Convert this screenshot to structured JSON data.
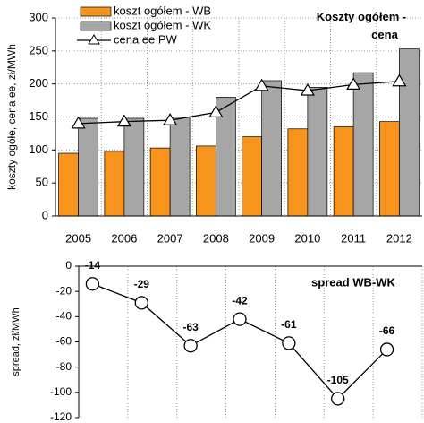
{
  "chart_data": [
    {
      "type": "bar",
      "title": "Koszty ogółem - cena",
      "y_label": "koszty ogółe, cena ee, zł/MWh",
      "categories": [
        "2005",
        "2006",
        "2007",
        "2008",
        "2009",
        "2010",
        "2011",
        "2012"
      ],
      "series": [
        {
          "name": "koszt ogółem - WB",
          "color": "#f7941d",
          "values": [
            95,
            98,
            103,
            106,
            120,
            132,
            135,
            143
          ]
        },
        {
          "name": "koszt ogółem - WK",
          "color": "#a6a6a6",
          "values": [
            148,
            148,
            150,
            180,
            205,
            195,
            217,
            253
          ]
        },
        {
          "name": "cena ee PW",
          "color": "#000000",
          "line": true,
          "values": [
            140,
            143,
            145,
            157,
            197,
            190,
            199,
            204
          ]
        }
      ],
      "ylim": [
        0,
        300
      ],
      "yticks": [
        0,
        50,
        100,
        150,
        200,
        250,
        300
      ],
      "grid": true
    },
    {
      "type": "line",
      "title": "spread WB-WK",
      "y_label": "spread, zł/MWh",
      "values": [
        -14,
        -29,
        -63,
        -42,
        -61,
        -105,
        -66
      ],
      "color": "#000000",
      "ylim": [
        -120,
        0
      ],
      "yticks": [
        -120,
        -100,
        -80,
        -60,
        -40,
        -20,
        0
      ],
      "grid": true
    }
  ]
}
